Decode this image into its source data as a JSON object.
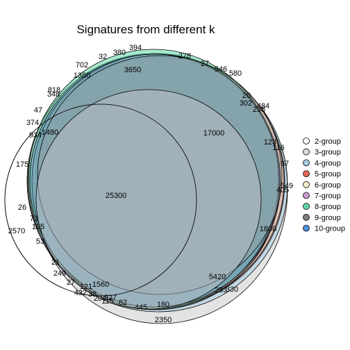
{
  "figure": {
    "title": "Signatures from different k"
  },
  "sets": [
    {
      "name": "2-group",
      "color": "#ffffff"
    },
    {
      "name": "3-group",
      "color": "#d9d9d9"
    },
    {
      "name": "4-group",
      "color": "#a6cee3"
    },
    {
      "name": "5-group",
      "color": "#e66a5a"
    },
    {
      "name": "6-group",
      "color": "#f1eccc"
    },
    {
      "name": "7-group",
      "color": "#c79bd0"
    },
    {
      "name": "8-group",
      "color": "#5fd7a7"
    },
    {
      "name": "9-group",
      "color": "#7f7f7f"
    },
    {
      "name": "10-group",
      "color": "#4a90d9"
    }
  ],
  "region_labels": [
    "394",
    "380",
    "32",
    "702",
    "276",
    "27",
    "546",
    "580",
    "1380",
    "3650",
    "20",
    "302",
    "484",
    "238",
    "818",
    "348",
    "47",
    "374",
    "1480",
    "934",
    "17000",
    "123",
    "116",
    "67",
    "175",
    "25300",
    "549",
    "405",
    "26",
    "2570",
    "73",
    "105",
    "53",
    "1800",
    "5420",
    "21",
    "249",
    "27",
    "121",
    "1560",
    "432",
    "38",
    "204",
    "327",
    "115",
    "82",
    "445",
    "180",
    "233",
    "330",
    "2350"
  ]
}
